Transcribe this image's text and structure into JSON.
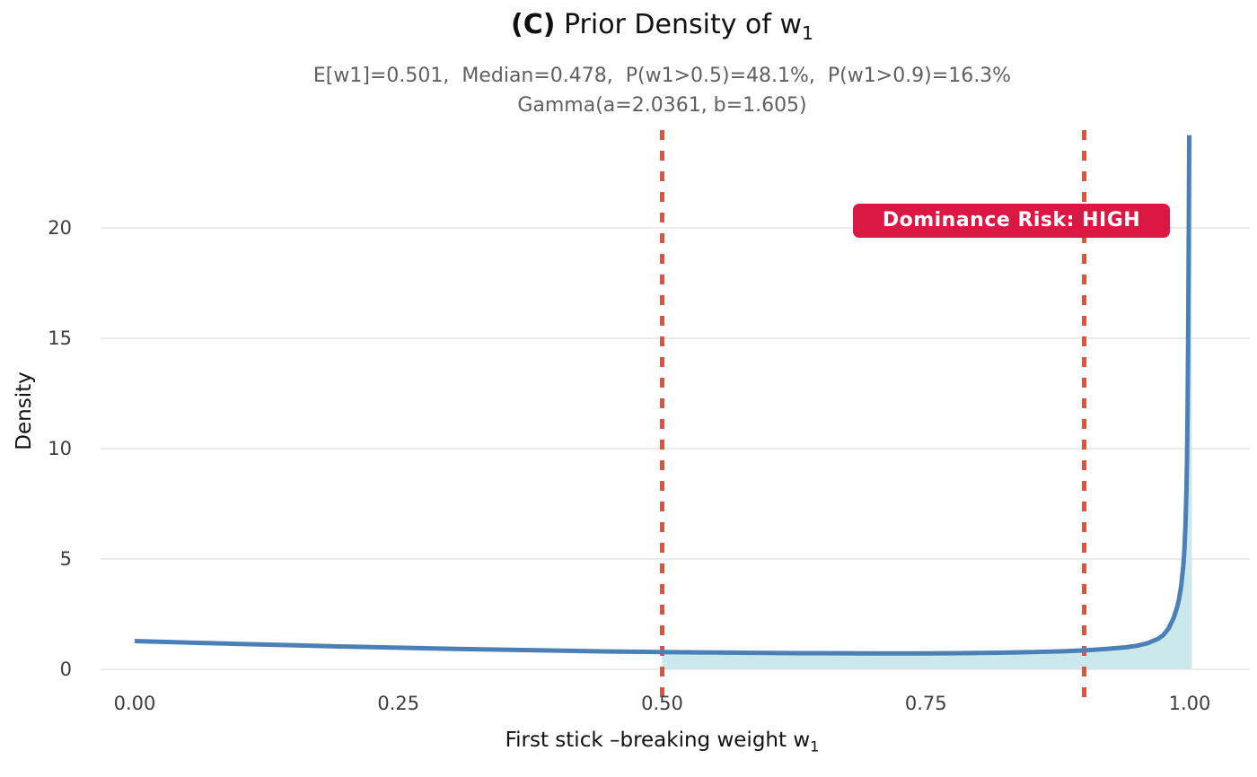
{
  "title": {
    "tag": "(C)",
    "text": " Prior Density of w",
    "sub": "1"
  },
  "subtitle": {
    "line1": "E[w1]=0.501,  Median=0.478,  P(w1>0.5)=48.1%,  P(w1>0.9)=16.3%",
    "line2": "Gamma(a=2.0361, b=1.605)"
  },
  "badge": {
    "label": "Dominance Risk: HIGH",
    "color": "#DA1843",
    "text_color": "#ffffff"
  },
  "axes": {
    "y_label": "Density",
    "x_label": {
      "text": "First stick –breaking weight w",
      "sub": "1"
    },
    "x_ticks": [
      "0.00",
      "0.25",
      "0.50",
      "0.75",
      "1.00"
    ],
    "x_tick_values": [
      0,
      0.25,
      0.5,
      0.75,
      1.0
    ],
    "y_ticks": [
      "0",
      "5",
      "10",
      "15",
      "20"
    ],
    "y_tick_values": [
      0,
      5,
      10,
      15,
      20
    ]
  },
  "chart_data": {
    "type": "line",
    "title": "(C) Prior Density of w1",
    "xlabel": "First stick-breaking weight w1",
    "ylabel": "Density",
    "xlim": [
      -0.03,
      1.06
    ],
    "ylim": [
      0,
      24.4
    ],
    "grid": "horizontal-only",
    "grid_color": "#EBEBEB",
    "background": "#ffffff",
    "series": [
      {
        "name": "prior-density-curve",
        "color": "#4A80B5",
        "line_width": 5,
        "points": [
          [
            0.0,
            1.28
          ],
          [
            0.03,
            1.24
          ],
          [
            0.06,
            1.2
          ],
          [
            0.1,
            1.15
          ],
          [
            0.15,
            1.09
          ],
          [
            0.2,
            1.03
          ],
          [
            0.25,
            0.98
          ],
          [
            0.3,
            0.93
          ],
          [
            0.35,
            0.89
          ],
          [
            0.4,
            0.85
          ],
          [
            0.45,
            0.81
          ],
          [
            0.5,
            0.78
          ],
          [
            0.55,
            0.76
          ],
          [
            0.6,
            0.74
          ],
          [
            0.65,
            0.73
          ],
          [
            0.7,
            0.72
          ],
          [
            0.75,
            0.72
          ],
          [
            0.78,
            0.73
          ],
          [
            0.82,
            0.75
          ],
          [
            0.85,
            0.78
          ],
          [
            0.88,
            0.82
          ],
          [
            0.9,
            0.86
          ],
          [
            0.92,
            0.92
          ],
          [
            0.94,
            1.0
          ],
          [
            0.95,
            1.07
          ],
          [
            0.96,
            1.18
          ],
          [
            0.97,
            1.38
          ],
          [
            0.975,
            1.55
          ],
          [
            0.98,
            1.85
          ],
          [
            0.985,
            2.35
          ],
          [
            0.988,
            2.8
          ],
          [
            0.99,
            3.2
          ],
          [
            0.992,
            3.8
          ],
          [
            0.994,
            4.7
          ],
          [
            0.995,
            5.4
          ],
          [
            0.996,
            6.5
          ],
          [
            0.997,
            8.2
          ],
          [
            0.9975,
            9.5
          ],
          [
            0.998,
            11.5
          ],
          [
            0.9985,
            14.5
          ],
          [
            0.999,
            18.5
          ],
          [
            0.9993,
            21.5
          ],
          [
            0.9996,
            24.2
          ]
        ]
      }
    ],
    "shaded_region": {
      "from_x": 0.5,
      "to_x": 1.0,
      "color": "#CBE9ED"
    },
    "vlines": [
      {
        "x": 0.5,
        "color": "#E0523C",
        "style": "dashed",
        "width": 5
      },
      {
        "x": 0.9,
        "color": "#E0523C",
        "style": "dashed",
        "width": 5
      }
    ],
    "stats": {
      "mean_w1": 0.501,
      "median_w1": 0.478,
      "p_w1_gt_0_5_pct": 48.1,
      "p_w1_gt_0_9_pct": 16.3,
      "gamma_a": 2.0361,
      "gamma_b": 1.605
    }
  }
}
